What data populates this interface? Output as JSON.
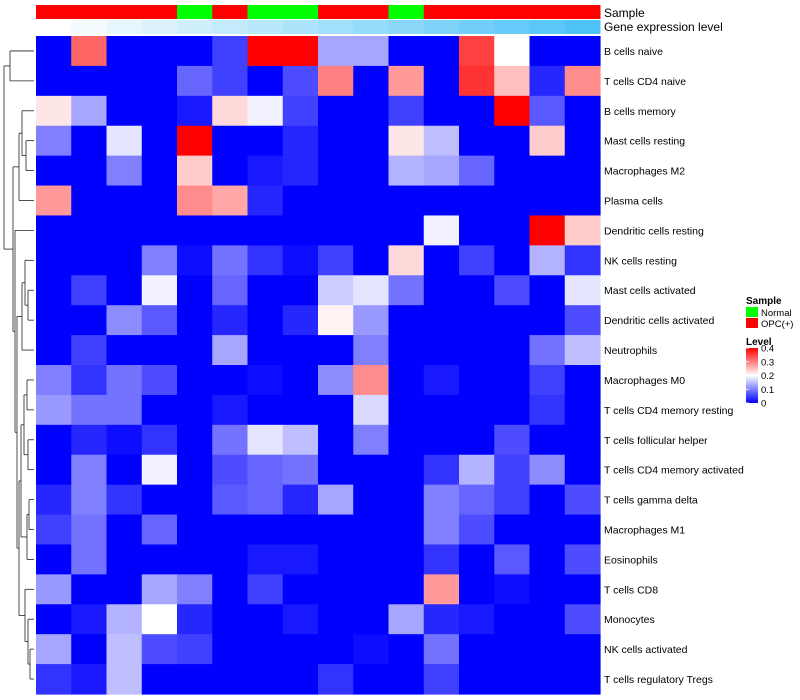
{
  "chart_data": {
    "type": "heatmap",
    "title": "",
    "samples": [
      "OPC(+)",
      "OPC(+)",
      "OPC(+)",
      "OPC(+)",
      "Normal",
      "OPC(+)",
      "Normal",
      "Normal",
      "OPC(+)",
      "OPC(+)",
      "Normal",
      "OPC(+)",
      "OPC(+)",
      "OPC(+)",
      "OPC(+)",
      "OPC(+)"
    ],
    "sample_annotation_label": "Sample",
    "expression_annotation_label": "Gene expression level",
    "expression_track": [
      0.0,
      0.03,
      0.06,
      0.09,
      0.12,
      0.15,
      0.18,
      0.21,
      0.24,
      0.27,
      0.3,
      0.33,
      0.36,
      0.39,
      0.42,
      0.45
    ],
    "rows": [
      "B cells naive",
      "T cells CD4 naive",
      "B cells memory",
      "Mast cells resting",
      "Macrophages M2",
      "Plasma cells",
      "Dendritic cells resting",
      "NK cells resting",
      "Mast cells activated",
      "Dendritic cells activated",
      "Neutrophils",
      "Macrophages M0",
      "T cells CD4 memory resting",
      "T cells follicular helper",
      "T cells CD4 memory activated",
      "T cells gamma delta",
      "Macrophages M1",
      "Eosinophils",
      "T cells CD8",
      "Monocytes",
      "NK cells activated",
      "T cells regulatory  Tregs"
    ],
    "values": [
      [
        0,
        0.32,
        0,
        0,
        0,
        0.05,
        0.4,
        0.4,
        0.13,
        0.13,
        0,
        0,
        0.35,
        0.2,
        0,
        0
      ],
      [
        0,
        0,
        0,
        0,
        0.08,
        0.05,
        0,
        0.06,
        0.3,
        0,
        0.28,
        0,
        0.36,
        0.25,
        0.03,
        0.29
      ],
      [
        0.22,
        0.13,
        0,
        0,
        0.02,
        0.23,
        0.19,
        0.05,
        0,
        0,
        0.05,
        0,
        0,
        0.4,
        0.07,
        0
      ],
      [
        0.1,
        0,
        0.18,
        0,
        0.4,
        0,
        0,
        0.03,
        0,
        0,
        0.22,
        0.15,
        0,
        0,
        0.24,
        0
      ],
      [
        0,
        0,
        0.1,
        0,
        0.24,
        0,
        0.02,
        0.03,
        0,
        0,
        0.14,
        0.13,
        0.08,
        0,
        0,
        0
      ],
      [
        0.28,
        0,
        0,
        0,
        0.29,
        0.27,
        0.03,
        0,
        0,
        0,
        0,
        0,
        0,
        0,
        0,
        0
      ],
      [
        0,
        0,
        0,
        0,
        0,
        0,
        0,
        0,
        0,
        0,
        0,
        0.19,
        0,
        0,
        0.4,
        0.24
      ],
      [
        0,
        0,
        0,
        0.1,
        0.01,
        0.09,
        0.04,
        0.01,
        0.05,
        0,
        0.23,
        0,
        0.05,
        0,
        0.14,
        0.04
      ],
      [
        0,
        0.05,
        0,
        0.19,
        0,
        0.08,
        0,
        0,
        0.16,
        0.18,
        0.09,
        0,
        0,
        0.06,
        0,
        0.18
      ],
      [
        0,
        0,
        0.11,
        0.07,
        0,
        0.03,
        0,
        0.03,
        0.21,
        0.12,
        0,
        0,
        0,
        0,
        0,
        0.06
      ],
      [
        0,
        0.05,
        0,
        0,
        0,
        0.13,
        0,
        0,
        0,
        0.1,
        0,
        0,
        0,
        0,
        0.09,
        0.15
      ],
      [
        0.1,
        0.04,
        0.09,
        0.06,
        0,
        0,
        0.01,
        0,
        0.11,
        0.29,
        0,
        0.02,
        0,
        0,
        0.05,
        0
      ],
      [
        0.12,
        0.09,
        0.09,
        0,
        0,
        0.02,
        0,
        0,
        0,
        0.17,
        0,
        0,
        0,
        0,
        0.04,
        0
      ],
      [
        0,
        0.03,
        0.01,
        0.04,
        0,
        0.09,
        0.18,
        0.15,
        0,
        0.1,
        0,
        0,
        0,
        0.06,
        0,
        0
      ],
      [
        0,
        0.1,
        0,
        0.19,
        0,
        0.06,
        0.08,
        0.09,
        0,
        0,
        0,
        0.04,
        0.14,
        0.05,
        0.11,
        0
      ],
      [
        0.03,
        0.1,
        0.04,
        0,
        0,
        0.07,
        0.08,
        0.03,
        0.13,
        0,
        0,
        0.1,
        0.08,
        0.05,
        0,
        0.06
      ],
      [
        0.05,
        0.09,
        0,
        0.08,
        0,
        0,
        0,
        0,
        0,
        0,
        0,
        0.1,
        0.06,
        0,
        0,
        0
      ],
      [
        0,
        0.09,
        0,
        0,
        0,
        0,
        0.02,
        0.02,
        0,
        0,
        0,
        0.04,
        0,
        0.07,
        0,
        0.06
      ],
      [
        0.12,
        0,
        0,
        0.13,
        0.1,
        0,
        0.05,
        0,
        0,
        0,
        0,
        0.28,
        0,
        0.01,
        0,
        0
      ],
      [
        0,
        0.02,
        0.14,
        0.2,
        0.03,
        0,
        0,
        0.02,
        0,
        0,
        0.13,
        0.03,
        0.02,
        0,
        0,
        0.06
      ],
      [
        0.13,
        0,
        0.15,
        0.06,
        0.05,
        0,
        0,
        0,
        0,
        0.01,
        0,
        0.09,
        0,
        0,
        0,
        0
      ],
      [
        0.04,
        0.02,
        0.15,
        0,
        0,
        0,
        0,
        0,
        0.04,
        0,
        0,
        0.05,
        0,
        0,
        0,
        0
      ]
    ],
    "legend": {
      "sample_title": "Sample",
      "sample_entries": [
        {
          "label": "Normal",
          "color": "#00ff00"
        },
        {
          "label": "OPC(+)",
          "color": "#ff0000"
        }
      ],
      "level_title": "Level",
      "level_ticks": [
        "0.4",
        "0.3",
        "0.2",
        "0.1",
        "0"
      ],
      "level_range": [
        0,
        0.4
      ]
    },
    "colors": {
      "low": "#0000ff",
      "mid": "#ffffff",
      "high": "#ff0000",
      "expr_low": "#ffffff",
      "expr_high": "#4fc3f7"
    }
  }
}
